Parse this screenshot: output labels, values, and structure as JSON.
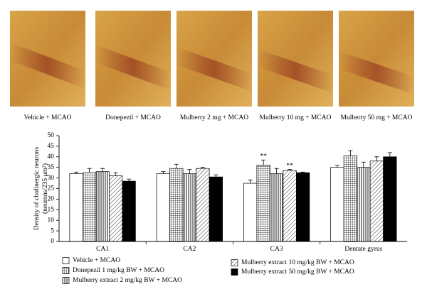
{
  "image_captions": [
    "Vehicle + MCAO",
    "Donepezil + MCAO",
    "Mulberry 2 mg + MCAO",
    "Mulberry 10 mg + MCAO",
    "Mulberry 50 mg + MCAO"
  ],
  "chart_data": {
    "type": "bar",
    "ylabel": [
      "Density of cholinergic neurons",
      "(neurons/235 μm²)"
    ],
    "categories": [
      "CA1",
      "CA2",
      "CA3",
      "Dentate gyrus"
    ],
    "series": [
      {
        "name": "Vehicle + MCAO",
        "color": "#ffffff",
        "pattern": "none",
        "values": [
          32,
          32,
          27.5,
          35
        ],
        "errors": [
          0.8,
          1,
          1.5,
          1
        ]
      },
      {
        "name": "Donepezil 1 mg/kg BW + MCAO",
        "color": "#ffffff",
        "pattern": "grid",
        "values": [
          32.5,
          34.5,
          36,
          40.5
        ],
        "errors": [
          2,
          2,
          2.5,
          2.5
        ]
      },
      {
        "name": "Mulberry extract 2 mg/kg BW + MCAO",
        "color": "#ffffff",
        "pattern": "vertical",
        "values": [
          33,
          32,
          32,
          35
        ],
        "errors": [
          1.5,
          2,
          2.5,
          2.5
        ]
      },
      {
        "name": "Mulberry extract 10 mg/kg BW + MCAO",
        "color": "#ffffff",
        "pattern": "diagonal",
        "values": [
          31,
          34.5,
          33.5,
          38
        ],
        "errors": [
          1.5,
          0.5,
          0.5,
          2
        ]
      },
      {
        "name": "Mulberry extract 50 mg/kg BW + MCAO",
        "color": "#000000",
        "pattern": "solid",
        "values": [
          28.5,
          30.5,
          32.5,
          40
        ],
        "errors": [
          1,
          1,
          0.3,
          2
        ]
      }
    ],
    "annotations": [
      {
        "text": "**",
        "category": "CA3",
        "series": "Donepezil 1 mg/kg BW + MCAO"
      },
      {
        "text": "**",
        "category": "CA3",
        "series": "Mulberry extract 10 mg/kg BW + MCAO"
      }
    ],
    "ylim": [
      0,
      50
    ],
    "yticks": [
      0,
      5,
      10,
      15,
      20,
      25,
      30,
      35,
      40,
      45,
      50
    ],
    "grid": false
  }
}
